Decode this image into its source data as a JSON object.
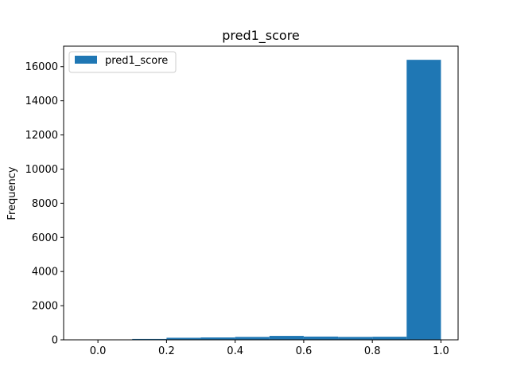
{
  "chart_data": {
    "type": "bar",
    "title": "pred1_score",
    "xlabel": "",
    "ylabel": "Frequency",
    "bins": [
      {
        "start": -0.0,
        "end": 0.1,
        "count": 0
      },
      {
        "start": 0.1,
        "end": 0.2,
        "count": 50
      },
      {
        "start": 0.2,
        "end": 0.3,
        "count": 120
      },
      {
        "start": 0.3,
        "end": 0.4,
        "count": 140
      },
      {
        "start": 0.4,
        "end": 0.5,
        "count": 170
      },
      {
        "start": 0.5,
        "end": 0.6,
        "count": 230
      },
      {
        "start": 0.6,
        "end": 0.7,
        "count": 190
      },
      {
        "start": 0.7,
        "end": 0.8,
        "count": 170
      },
      {
        "start": 0.8,
        "end": 0.9,
        "count": 180
      },
      {
        "start": 0.9,
        "end": 1.0,
        "count": 16400
      }
    ],
    "xlim": [
      -0.1,
      1.05
    ],
    "ylim": [
      0,
      17200
    ],
    "xticks": [
      0.0,
      0.2,
      0.4,
      0.6,
      0.8,
      1.0
    ],
    "xtick_labels": [
      "0.0",
      "0.2",
      "0.4",
      "0.6",
      "0.8",
      "1.0"
    ],
    "yticks": [
      0,
      2000,
      4000,
      6000,
      8000,
      10000,
      12000,
      14000,
      16000
    ],
    "ytick_labels": [
      "0",
      "2000",
      "4000",
      "6000",
      "8000",
      "10000",
      "12000",
      "14000",
      "16000"
    ],
    "legend": {
      "entries": [
        "pred1_score"
      ],
      "placement": "upper-left"
    },
    "grid": false,
    "bar_color": "#1f77b4"
  }
}
